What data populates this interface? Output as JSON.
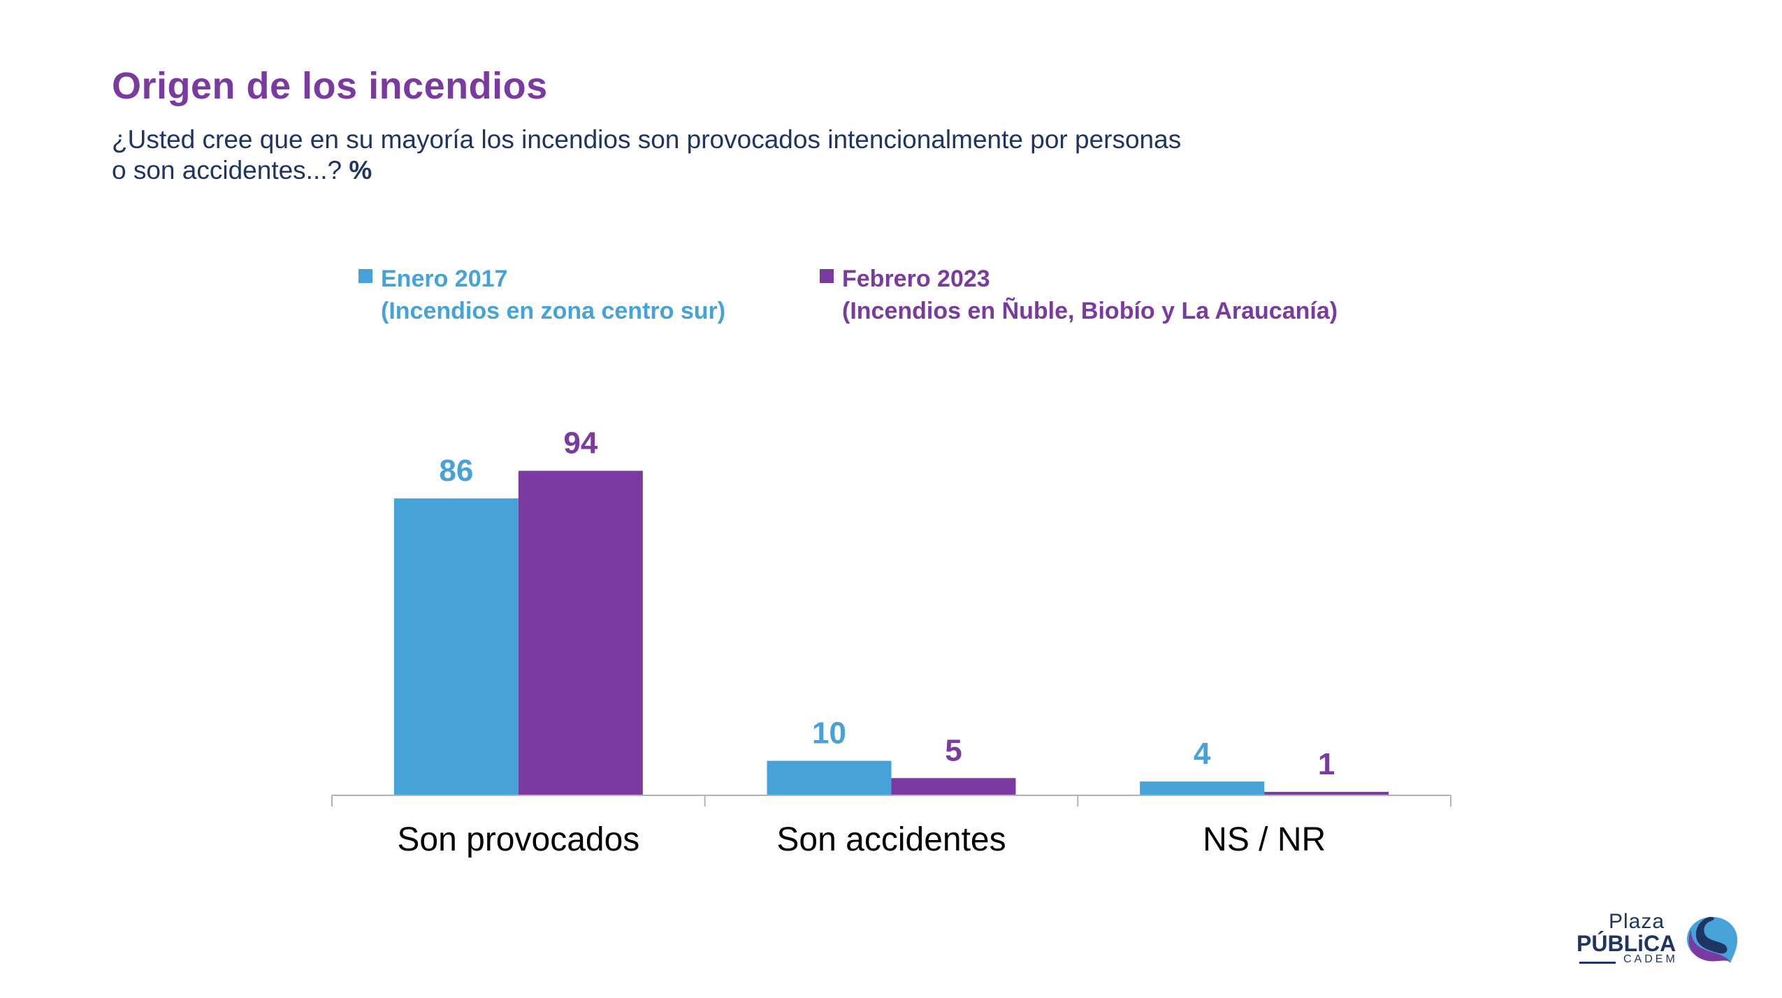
{
  "header": {
    "title": "Origen de los incendios",
    "subtitle_line1": "¿Usted cree que en su mayoría los incendios son provocados intencionalmente por personas",
    "subtitle_line2": "o son accidentes...? ",
    "subtitle_unit": "%"
  },
  "legend": [
    {
      "label": "Enero 2017",
      "sublabel": "(Incendios en zona centro sur)",
      "color": "#46a3da"
    },
    {
      "label": "Febrero 2023",
      "sublabel": "(Incendios en Ñuble, Biobío y La Araucanía)",
      "color": "#7a3a9f"
    }
  ],
  "chart_data": {
    "type": "bar",
    "title": "Origen de los incendios",
    "xlabel": "",
    "ylabel": "%",
    "categories": [
      "Son provocados",
      "Son accidentes",
      "NS / NR"
    ],
    "series": [
      {
        "name": "Enero 2017 (Incendios en zona centro sur)",
        "color": "#46a3da",
        "values": [
          86,
          10,
          4
        ]
      },
      {
        "name": "Febrero 2023 (Incendios en Ñuble, Biobío y La Araucanía)",
        "color": "#7a3a9f",
        "values": [
          94,
          5,
          1
        ]
      }
    ],
    "ylim": [
      0,
      100
    ],
    "grid": false,
    "legend_position": "top"
  },
  "logo": {
    "line1": "Plaza",
    "line2": "PÚBLiCA",
    "line3": "CADEM"
  }
}
